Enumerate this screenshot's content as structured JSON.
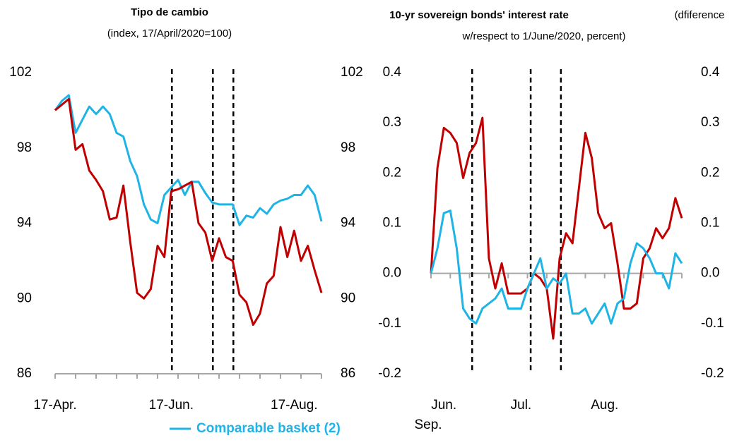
{
  "chart_data": [
    {
      "type": "line",
      "title": "Tipo de cambio",
      "subtitle": "(index, 17/April/2020=100)",
      "categories": [
        "17-Apr.",
        null,
        null,
        null,
        null,
        null,
        null,
        null,
        null,
        null,
        null,
        null,
        null,
        null,
        null,
        null,
        null,
        "17-Jun.",
        null,
        null,
        null,
        null,
        null,
        null,
        null,
        null,
        null,
        null,
        null,
        null,
        null,
        null,
        null,
        null,
        null,
        "17-Aug.",
        null,
        null,
        null,
        null
      ],
      "series": [
        {
          "name": "Comparable basket (2)",
          "color": "#1fb4e6",
          "values": [
            100,
            100.5,
            100.8,
            98.8,
            99.5,
            100.2,
            99.8,
            100.2,
            99.8,
            98.8,
            98.6,
            97.3,
            96.5,
            95,
            94.2,
            94,
            95.5,
            95.9,
            96.3,
            95.5,
            96.2,
            96.2,
            95.6,
            95.1,
            95,
            95,
            95,
            93.9,
            94.4,
            94.3,
            94.8,
            94.5,
            95,
            95.2,
            95.3,
            95.5,
            95.5,
            96,
            95.5,
            94.1
          ]
        },
        {
          "color": "#c00000",
          "values": [
            100,
            100.3,
            100.6,
            97.9,
            98.2,
            96.8,
            96.3,
            95.7,
            94.2,
            94.3,
            96,
            93,
            90.3,
            90,
            90.5,
            92.8,
            92.2,
            95.7,
            95.8,
            96,
            96.2,
            94,
            93.5,
            92,
            93.2,
            92.2,
            92,
            90.2,
            89.8,
            88.6,
            89.2,
            90.8,
            91.2,
            93.8,
            92.2,
            93.6,
            92,
            92.8,
            91.5,
            90.3
          ]
        }
      ],
      "ylim": [
        86,
        102
      ],
      "yticks": [
        86,
        90,
        94,
        98,
        102
      ],
      "vlines": [
        17.1,
        23.1,
        26.1
      ]
    },
    {
      "type": "line",
      "title": "10-yr sovereign bonds' interest rate",
      "subtitle": [
        "(dfiference",
        "w/respect to  1/June/2020, percent)"
      ],
      "categories": [
        null,
        null,
        "Jun.",
        null,
        null,
        null,
        null,
        null,
        null,
        null,
        null,
        null,
        null,
        null,
        "Jul.",
        null,
        null,
        null,
        null,
        null,
        null,
        null,
        null,
        null,
        null,
        null,
        null,
        "Aug.",
        null,
        null,
        null,
        null,
        null,
        null,
        null,
        null,
        null,
        null,
        null,
        null
      ],
      "x_label_wrapped": "Sep.",
      "series": [
        {
          "color": "#c00000",
          "values": [
            0,
            0.21,
            0.29,
            0.28,
            0.26,
            0.19,
            0.24,
            0.26,
            0.31,
            0.03,
            -0.03,
            0.02,
            -0.04,
            -0.04,
            -0.04,
            -0.03,
            0,
            -0.01,
            -0.03,
            -0.13,
            0.03,
            0.08,
            0.06,
            0.17,
            0.28,
            0.23,
            0.12,
            0.09,
            0.1,
            0.02,
            -0.07,
            -0.07,
            -0.06,
            0.03,
            0.05,
            0.09,
            0.07,
            0.09,
            0.15,
            0.11
          ]
        },
        {
          "color": "#1fb4e6",
          "values": [
            0,
            0.05,
            0.12,
            0.125,
            0.05,
            -0.07,
            -0.09,
            -0.1,
            -0.07,
            -0.06,
            -0.05,
            -0.03,
            -0.07,
            -0.07,
            -0.07,
            -0.03,
            0,
            0.03,
            -0.03,
            -0.01,
            -0.02,
            0,
            -0.08,
            -0.08,
            -0.07,
            -0.1,
            -0.08,
            -0.06,
            -0.1,
            -0.06,
            -0.05,
            0.02,
            0.06,
            0.05,
            0.03,
            0,
            0,
            -0.03,
            0.04,
            0.02
          ]
        }
      ],
      "ylim": [
        -0.2,
        0.4
      ],
      "yticks": [
        -0.2,
        -0.1,
        {
          "value": 0,
          "label": "0.0"
        },
        0.1,
        0.2,
        0.3,
        0.4
      ],
      "vlines": [
        6.4,
        15.5,
        20.2
      ]
    }
  ]
}
